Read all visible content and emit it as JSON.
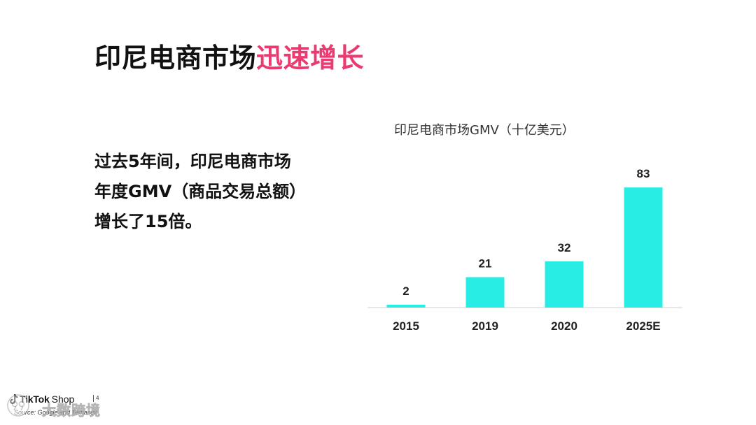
{
  "slide": {
    "title_black": "印尼电商市场",
    "title_accent": "迅速增长",
    "accent_color": "#ea3a70",
    "body_lines": [
      "过去5年间，印尼电商市场",
      "年度GMV（商品交易总额）",
      "增长了15倍。"
    ],
    "page_number": "4"
  },
  "footer": {
    "brand_icon": "tiktok-note-icon",
    "brand": "TikTok",
    "brand_suffix": "Shop",
    "source": "Source: Google and Temasek",
    "watermark": "大数跨境",
    "watermark_icon": "watermark-logo-icon"
  },
  "chart_data": {
    "type": "bar",
    "title": "印尼电商市场GMV（十亿美元）",
    "categories": [
      "2015",
      "2019",
      "2020",
      "2025E"
    ],
    "values": [
      2,
      21,
      32,
      83
    ],
    "xlabel": "",
    "ylabel": "",
    "ylim": [
      0,
      100
    ],
    "grid": false,
    "data_labels": true,
    "bar_color": "#27ede5",
    "axis_color": "#d9d9d9"
  }
}
